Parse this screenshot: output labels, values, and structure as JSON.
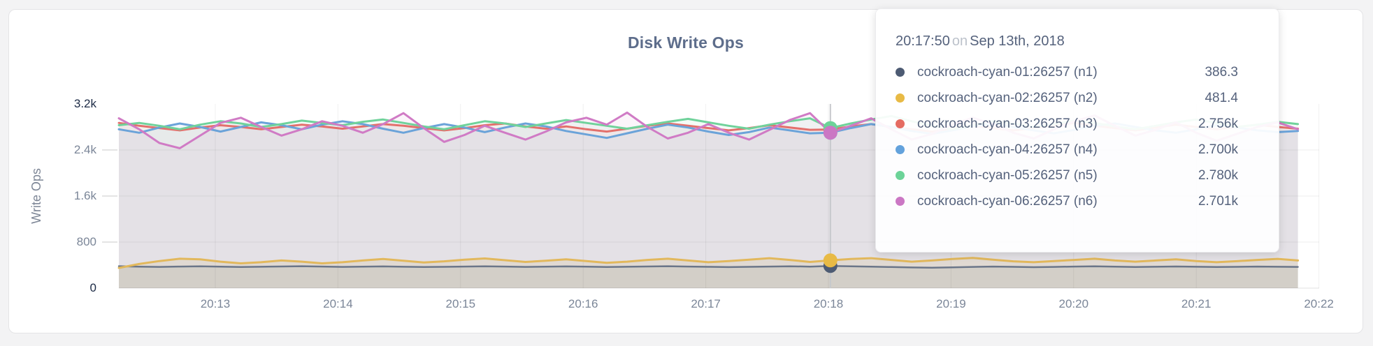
{
  "page": {
    "background": "#f3f3f4",
    "card_background": "#ffffff"
  },
  "tooltip": {
    "time": "20:17:50",
    "conjunction": "on",
    "date": "Sep 13th, 2018",
    "hover_index": 35
  },
  "chart_data": {
    "type": "line",
    "title": "Disk Write Ops",
    "ylabel": "Write Ops",
    "xlabel": "",
    "grid": true,
    "legend_position": "tooltip",
    "ylim": [
      0,
      3200
    ],
    "sample_interval_seconds": 10,
    "y_ticks": [
      {
        "label": "0",
        "value": 0,
        "emphasis": true
      },
      {
        "label": "800",
        "value": 800,
        "emphasis": false
      },
      {
        "label": "1.6k",
        "value": 1600,
        "emphasis": false
      },
      {
        "label": "2.4k",
        "value": 2400,
        "emphasis": false
      },
      {
        "label": "3.2k",
        "value": 3200,
        "emphasis": true
      }
    ],
    "x_ticks": [
      {
        "label": "20:13"
      },
      {
        "label": "20:14"
      },
      {
        "label": "20:15"
      },
      {
        "label": "20:16"
      },
      {
        "label": "20:17"
      },
      {
        "label": "20:18"
      },
      {
        "label": "20:19"
      },
      {
        "label": "20:20"
      },
      {
        "label": "20:21"
      },
      {
        "label": "20:22"
      }
    ],
    "series": [
      {
        "id": "n1",
        "label": "cockroach-cyan-01:26257 (n1)",
        "hover_value_text": "386.3",
        "line_color": "#6b7689",
        "dot_color": "#4d5b73",
        "fill": "rgba(90,103,128,0.12)",
        "line_width": 2.5,
        "values": [
          380,
          372,
          368,
          374,
          378,
          372,
          366,
          371,
          376,
          380,
          374,
          369,
          373,
          377,
          371,
          366,
          370,
          375,
          379,
          374,
          369,
          373,
          377,
          372,
          367,
          371,
          376,
          380,
          375,
          370,
          365,
          370,
          375,
          379,
          373,
          386,
          379,
          372,
          366,
          359,
          354,
          361,
          369,
          375,
          370,
          364,
          369,
          374,
          379,
          373,
          367,
          371,
          376,
          371,
          366,
          370,
          374,
          371,
          368
        ]
      },
      {
        "id": "n2",
        "label": "cockroach-cyan-02:26257 (n2)",
        "hover_value_text": "481.4",
        "line_color": "#e2b85c",
        "dot_color": "#e8ba45",
        "fill": "rgba(226,184,88,0.16)",
        "line_width": 3,
        "values": [
          350,
          420,
          470,
          510,
          500,
          460,
          430,
          450,
          480,
          460,
          430,
          450,
          480,
          505,
          475,
          445,
          465,
          495,
          515,
          485,
          455,
          475,
          500,
          470,
          440,
          460,
          490,
          510,
          480,
          450,
          470,
          495,
          520,
          490,
          455,
          481,
          505,
          520,
          490,
          460,
          480,
          505,
          525,
          495,
          465,
          450,
          470,
          490,
          510,
          480,
          460,
          480,
          500,
          470,
          450,
          468,
          490,
          508,
          480
        ]
      },
      {
        "id": "n3",
        "label": "cockroach-cyan-03:26257 (n3)",
        "hover_value_text": "2.756k",
        "line_color": "#e3706c",
        "dot_color": "#e56c62",
        "fill": "rgba(227,112,108,0.08)",
        "line_width": 3,
        "values": [
          2870,
          2820,
          2780,
          2740,
          2790,
          2830,
          2800,
          2760,
          2800,
          2840,
          2810,
          2770,
          2810,
          2850,
          2820,
          2780,
          2740,
          2780,
          2830,
          2860,
          2810,
          2770,
          2810,
          2760,
          2720,
          2770,
          2820,
          2860,
          2820,
          2780,
          2740,
          2780,
          2830,
          2790,
          2750,
          2756,
          2810,
          2850,
          2800,
          2760,
          2720,
          2770,
          2820,
          2780,
          2740,
          2780,
          2830,
          2870,
          2820,
          2780,
          2740,
          2790,
          2840,
          2800,
          2760,
          2800,
          2840,
          2800,
          2770
        ]
      },
      {
        "id": "n4",
        "label": "cockroach-cyan-04:26257 (n4)",
        "hover_value_text": "2.700k",
        "line_color": "#6ba3d9",
        "dot_color": "#63a2dc",
        "fill": "rgba(107,163,217,0.08)",
        "line_width": 3,
        "values": [
          2760,
          2700,
          2790,
          2860,
          2800,
          2720,
          2800,
          2880,
          2830,
          2760,
          2840,
          2900,
          2850,
          2770,
          2700,
          2780,
          2850,
          2790,
          2710,
          2790,
          2860,
          2810,
          2730,
          2670,
          2610,
          2690,
          2770,
          2840,
          2790,
          2720,
          2660,
          2710,
          2790,
          2740,
          2690,
          2700,
          2780,
          2850,
          2800,
          2730,
          2680,
          2740,
          2810,
          2860,
          2800,
          2740,
          2690,
          2750,
          2820,
          2860,
          2800,
          2740,
          2700,
          2760,
          2830,
          2790,
          2740,
          2710,
          2730
        ]
      },
      {
        "id": "n5",
        "label": "cockroach-cyan-05:26257 (n5)",
        "hover_value_text": "2.780k",
        "line_color": "#70d29b",
        "dot_color": "#6cd398",
        "fill": "rgba(112,210,155,0.08)",
        "line_width": 3,
        "values": [
          2830,
          2870,
          2820,
          2760,
          2840,
          2900,
          2860,
          2800,
          2850,
          2910,
          2870,
          2830,
          2890,
          2930,
          2870,
          2810,
          2760,
          2830,
          2900,
          2860,
          2800,
          2860,
          2920,
          2870,
          2820,
          2770,
          2830,
          2890,
          2940,
          2880,
          2820,
          2770,
          2840,
          2900,
          2950,
          2780,
          2860,
          2930,
          2990,
          2900,
          2820,
          2760,
          2830,
          2900,
          2860,
          2800,
          2850,
          2910,
          2870,
          2810,
          2760,
          2820,
          2880,
          2930,
          2870,
          2800,
          2840,
          2890,
          2850
        ]
      },
      {
        "id": "n6",
        "label": "cockroach-cyan-06:26257 (n6)",
        "hover_value_text": "2.701k",
        "line_color": "#d07bc5",
        "dot_color": "#cb77c4",
        "fill": "rgba(208,123,197,0.08)",
        "line_width": 3,
        "values": [
          2950,
          2760,
          2520,
          2430,
          2650,
          2870,
          2960,
          2800,
          2650,
          2760,
          2900,
          2820,
          2700,
          2850,
          3040,
          2780,
          2540,
          2660,
          2820,
          2700,
          2580,
          2720,
          2880,
          2960,
          2840,
          3050,
          2800,
          2600,
          2700,
          2850,
          2700,
          2580,
          2750,
          2920,
          3040,
          2701,
          2820,
          2950,
          2760,
          2580,
          2680,
          2840,
          2960,
          2850,
          2700,
          2600,
          2760,
          2900,
          3000,
          2820,
          2650,
          2750,
          2880,
          2700,
          2560,
          2680,
          2800,
          2880,
          2760
        ]
      }
    ]
  }
}
